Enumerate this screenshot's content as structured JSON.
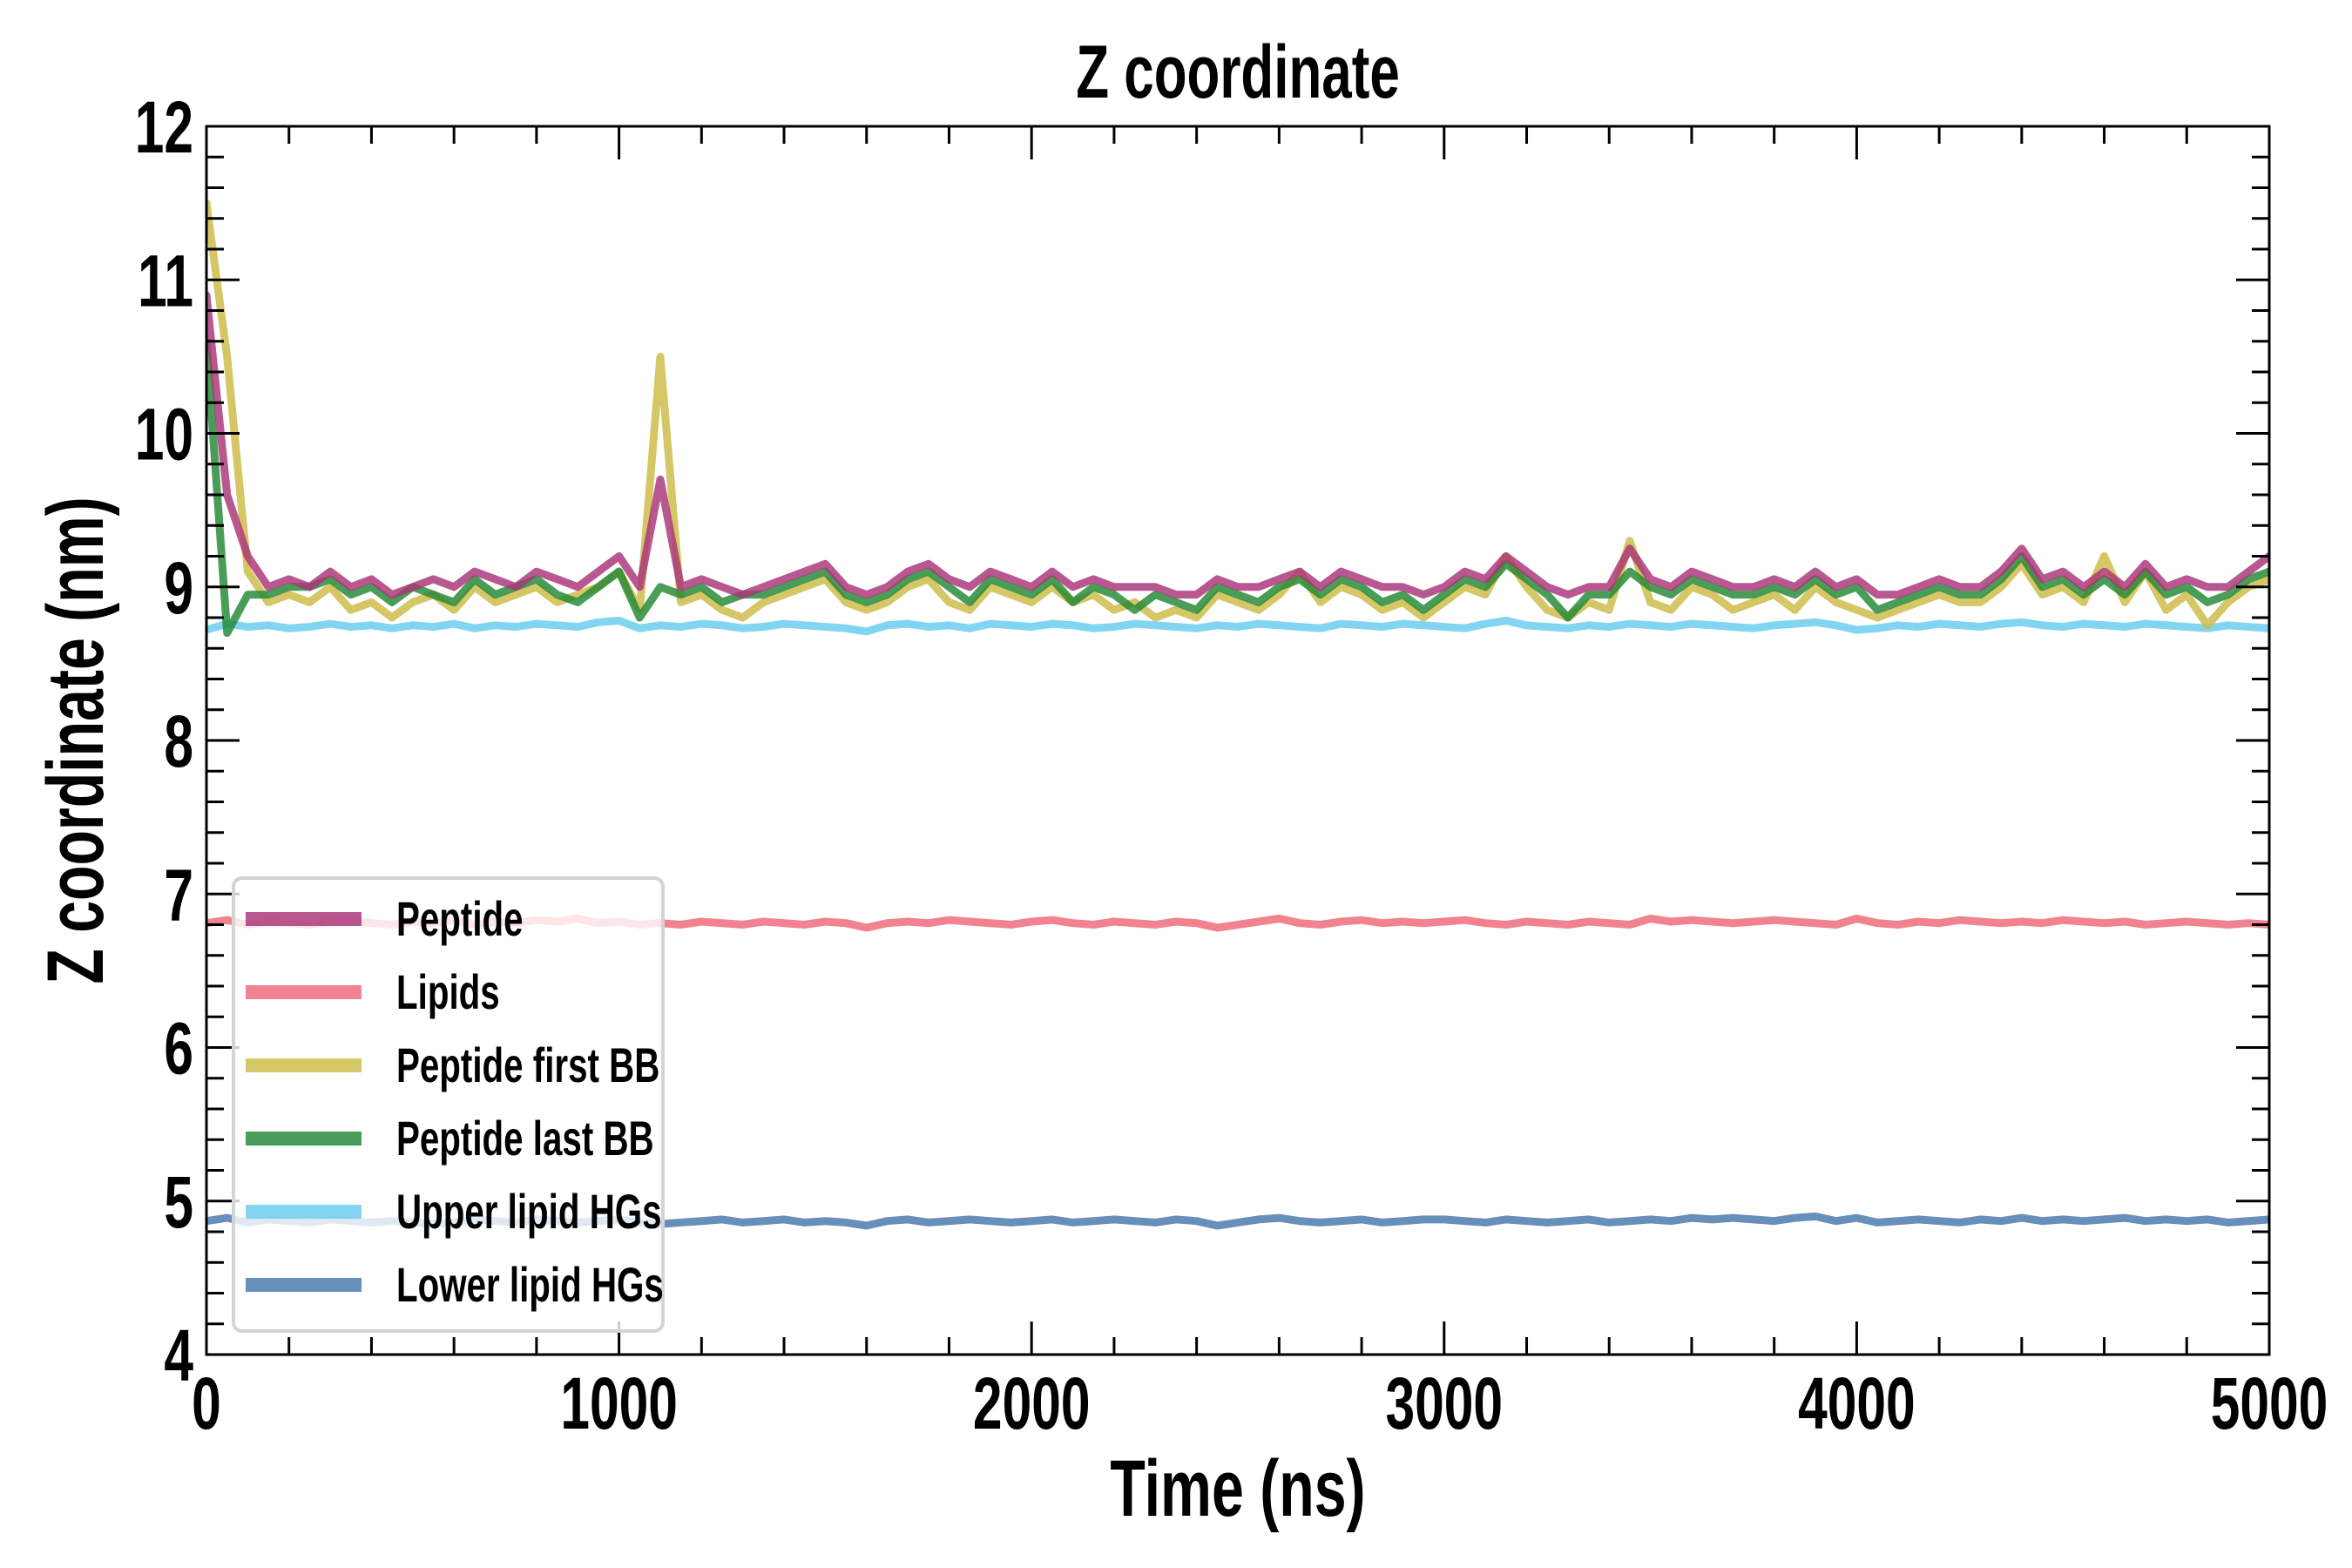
{
  "chart_data": {
    "type": "line",
    "title": "Z coordinate",
    "xlabel": "Time (ns)",
    "ylabel": "Z coordinate (nm)",
    "xlim": [
      0,
      5000
    ],
    "ylim": [
      4,
      12
    ],
    "xticks": [
      "0",
      "1000",
      "2000",
      "3000",
      "4000",
      "5000"
    ],
    "yticks": [
      "4",
      "5",
      "6",
      "7",
      "8",
      "9",
      "10",
      "11",
      "12"
    ],
    "grid": false,
    "legend_position": "lower-left",
    "x": [
      0,
      50,
      100,
      150,
      200,
      250,
      300,
      350,
      400,
      450,
      500,
      550,
      600,
      650,
      700,
      750,
      800,
      850,
      900,
      950,
      1000,
      1050,
      1100,
      1150,
      1200,
      1250,
      1300,
      1350,
      1400,
      1450,
      1500,
      1550,
      1600,
      1650,
      1700,
      1750,
      1800,
      1850,
      1900,
      1950,
      2000,
      2050,
      2100,
      2150,
      2200,
      2250,
      2300,
      2350,
      2400,
      2450,
      2500,
      2550,
      2600,
      2650,
      2700,
      2750,
      2800,
      2850,
      2900,
      2950,
      3000,
      3050,
      3100,
      3150,
      3200,
      3250,
      3300,
      3350,
      3400,
      3450,
      3500,
      3550,
      3600,
      3650,
      3700,
      3750,
      3800,
      3850,
      3900,
      3950,
      4000,
      4050,
      4100,
      4150,
      4200,
      4250,
      4300,
      4350,
      4400,
      4450,
      4500,
      4550,
      4600,
      4650,
      4700,
      4750,
      4800,
      4850,
      4900,
      4950,
      5000
    ],
    "series": [
      {
        "name": "Upper lipid HGs",
        "color": "#66CCEE",
        "values": [
          8.72,
          8.76,
          8.74,
          8.75,
          8.73,
          8.74,
          8.76,
          8.74,
          8.75,
          8.73,
          8.75,
          8.74,
          8.76,
          8.73,
          8.75,
          8.74,
          8.76,
          8.75,
          8.74,
          8.77,
          8.78,
          8.73,
          8.75,
          8.74,
          8.76,
          8.75,
          8.73,
          8.74,
          8.76,
          8.75,
          8.74,
          8.73,
          8.71,
          8.75,
          8.76,
          8.74,
          8.75,
          8.73,
          8.76,
          8.75,
          8.74,
          8.76,
          8.75,
          8.73,
          8.74,
          8.76,
          8.75,
          8.74,
          8.73,
          8.75,
          8.74,
          8.76,
          8.75,
          8.74,
          8.73,
          8.76,
          8.75,
          8.74,
          8.76,
          8.75,
          8.74,
          8.73,
          8.76,
          8.78,
          8.75,
          8.74,
          8.73,
          8.75,
          8.74,
          8.76,
          8.75,
          8.74,
          8.76,
          8.75,
          8.74,
          8.73,
          8.75,
          8.76,
          8.77,
          8.75,
          8.72,
          8.73,
          8.75,
          8.74,
          8.76,
          8.75,
          8.74,
          8.76,
          8.77,
          8.75,
          8.74,
          8.76,
          8.75,
          8.74,
          8.76,
          8.75,
          8.74,
          8.73,
          8.75,
          8.74,
          8.73
        ]
      },
      {
        "name": "Lipids",
        "color": "#EE6677",
        "values": [
          6.81,
          6.83,
          6.8,
          6.82,
          6.81,
          6.8,
          6.82,
          6.83,
          6.81,
          6.8,
          6.82,
          6.81,
          6.83,
          6.8,
          6.82,
          6.81,
          6.83,
          6.82,
          6.84,
          6.81,
          6.82,
          6.8,
          6.81,
          6.8,
          6.82,
          6.81,
          6.8,
          6.82,
          6.81,
          6.8,
          6.82,
          6.81,
          6.78,
          6.81,
          6.82,
          6.81,
          6.83,
          6.82,
          6.81,
          6.8,
          6.82,
          6.83,
          6.81,
          6.8,
          6.82,
          6.81,
          6.8,
          6.82,
          6.81,
          6.78,
          6.8,
          6.82,
          6.84,
          6.81,
          6.8,
          6.82,
          6.83,
          6.81,
          6.82,
          6.81,
          6.82,
          6.83,
          6.81,
          6.8,
          6.82,
          6.81,
          6.8,
          6.82,
          6.81,
          6.8,
          6.84,
          6.82,
          6.83,
          6.82,
          6.81,
          6.82,
          6.83,
          6.82,
          6.81,
          6.8,
          6.84,
          6.81,
          6.8,
          6.82,
          6.81,
          6.83,
          6.82,
          6.81,
          6.82,
          6.81,
          6.83,
          6.82,
          6.81,
          6.82,
          6.8,
          6.81,
          6.82,
          6.81,
          6.8,
          6.81,
          6.8
        ]
      },
      {
        "name": "Lower lipid HGs",
        "color": "#4477AA",
        "values": [
          4.87,
          4.89,
          4.86,
          4.88,
          4.87,
          4.86,
          4.88,
          4.87,
          4.86,
          4.87,
          4.86,
          4.85,
          4.86,
          4.88,
          4.87,
          4.86,
          4.88,
          4.87,
          4.86,
          4.87,
          4.88,
          4.86,
          4.85,
          4.86,
          4.87,
          4.88,
          4.86,
          4.87,
          4.88,
          4.86,
          4.87,
          4.86,
          4.84,
          4.87,
          4.88,
          4.86,
          4.87,
          4.88,
          4.87,
          4.86,
          4.87,
          4.88,
          4.86,
          4.87,
          4.88,
          4.87,
          4.86,
          4.88,
          4.87,
          4.84,
          4.86,
          4.88,
          4.89,
          4.87,
          4.86,
          4.87,
          4.88,
          4.86,
          4.87,
          4.88,
          4.88,
          4.87,
          4.86,
          4.88,
          4.87,
          4.86,
          4.87,
          4.88,
          4.86,
          4.87,
          4.88,
          4.87,
          4.89,
          4.88,
          4.89,
          4.88,
          4.87,
          4.89,
          4.9,
          4.87,
          4.89,
          4.86,
          4.87,
          4.88,
          4.87,
          4.86,
          4.88,
          4.87,
          4.89,
          4.87,
          4.88,
          4.87,
          4.88,
          4.89,
          4.87,
          4.88,
          4.87,
          4.88,
          4.86,
          4.87,
          4.88
        ]
      },
      {
        "name": "Peptide first BB",
        "color": "#CCBB44",
        "values": [
          11.5,
          10.5,
          9.1,
          8.9,
          8.95,
          8.9,
          9.0,
          8.85,
          8.9,
          8.8,
          8.9,
          8.95,
          8.85,
          9.0,
          8.9,
          8.95,
          9.0,
          8.9,
          8.95,
          9.0,
          9.1,
          8.85,
          10.5,
          8.9,
          8.95,
          8.85,
          8.8,
          8.9,
          8.95,
          9.0,
          9.05,
          8.9,
          8.85,
          8.9,
          9.0,
          9.05,
          8.9,
          8.85,
          9.0,
          8.95,
          8.9,
          9.0,
          8.9,
          8.95,
          8.85,
          8.9,
          8.8,
          8.85,
          8.8,
          8.95,
          8.9,
          8.85,
          8.95,
          9.1,
          8.9,
          9.0,
          8.95,
          8.85,
          8.9,
          8.8,
          8.9,
          9.0,
          8.95,
          9.2,
          9.0,
          8.85,
          8.8,
          8.9,
          8.85,
          9.3,
          8.9,
          8.85,
          9.0,
          8.95,
          8.85,
          8.9,
          8.95,
          8.85,
          9.0,
          8.9,
          8.85,
          8.8,
          8.85,
          8.9,
          8.95,
          8.9,
          8.9,
          9.0,
          9.15,
          8.95,
          9.0,
          8.9,
          9.2,
          8.9,
          9.1,
          8.85,
          8.95,
          8.75,
          8.9,
          9.0,
          9.05
        ]
      },
      {
        "name": "Peptide last BB",
        "color": "#228833",
        "values": [
          10.6,
          8.7,
          8.95,
          8.95,
          9.0,
          9.0,
          9.05,
          8.95,
          9.0,
          8.9,
          9.0,
          8.95,
          8.9,
          9.05,
          8.95,
          9.0,
          9.05,
          8.95,
          8.9,
          9.0,
          9.1,
          8.8,
          9.0,
          8.95,
          9.0,
          8.9,
          8.95,
          8.95,
          9.0,
          9.05,
          9.1,
          8.95,
          8.9,
          8.95,
          9.05,
          9.1,
          9.0,
          8.9,
          9.05,
          9.0,
          8.95,
          9.05,
          8.9,
          9.0,
          8.95,
          8.85,
          8.95,
          8.9,
          8.85,
          9.0,
          8.95,
          8.9,
          9.0,
          9.05,
          8.95,
          9.05,
          9.0,
          8.9,
          8.95,
          8.85,
          8.95,
          9.05,
          9.0,
          9.15,
          9.05,
          8.95,
          8.8,
          8.95,
          8.95,
          9.1,
          9.0,
          8.95,
          9.05,
          9.0,
          8.95,
          8.95,
          9.0,
          8.95,
          9.05,
          8.95,
          9.0,
          8.85,
          8.9,
          8.95,
          9.0,
          8.95,
          8.95,
          9.05,
          9.2,
          9.0,
          9.05,
          8.95,
          9.05,
          8.95,
          9.1,
          8.95,
          9.0,
          8.9,
          8.95,
          9.05,
          9.1
        ]
      },
      {
        "name": "Peptide",
        "color": "#AA3377",
        "values": [
          10.9,
          9.6,
          9.2,
          9.0,
          9.05,
          9.0,
          9.1,
          9.0,
          9.05,
          8.95,
          9.0,
          9.05,
          9.0,
          9.1,
          9.05,
          9.0,
          9.1,
          9.05,
          9.0,
          9.1,
          9.2,
          9.0,
          9.7,
          9.0,
          9.05,
          9.0,
          8.95,
          9.0,
          9.05,
          9.1,
          9.15,
          9.0,
          8.95,
          9.0,
          9.1,
          9.15,
          9.05,
          9.0,
          9.1,
          9.05,
          9.0,
          9.1,
          9.0,
          9.05,
          9.0,
          9.0,
          9.0,
          8.95,
          8.95,
          9.05,
          9.0,
          9.0,
          9.05,
          9.1,
          9.0,
          9.1,
          9.05,
          9.0,
          9.0,
          8.95,
          9.0,
          9.1,
          9.05,
          9.2,
          9.1,
          9.0,
          8.95,
          9.0,
          9.0,
          9.25,
          9.05,
          9.0,
          9.1,
          9.05,
          9.0,
          9.0,
          9.05,
          9.0,
          9.1,
          9.0,
          9.05,
          8.95,
          8.95,
          9.0,
          9.05,
          9.0,
          9.0,
          9.1,
          9.25,
          9.05,
          9.1,
          9.0,
          9.1,
          9.0,
          9.15,
          9.0,
          9.05,
          9.0,
          9.0,
          9.1,
          9.2
        ]
      }
    ],
    "legend_order": [
      "Peptide",
      "Lipids",
      "Peptide first BB",
      "Peptide last BB",
      "Upper lipid HGs",
      "Lower lipid HGs"
    ]
  }
}
